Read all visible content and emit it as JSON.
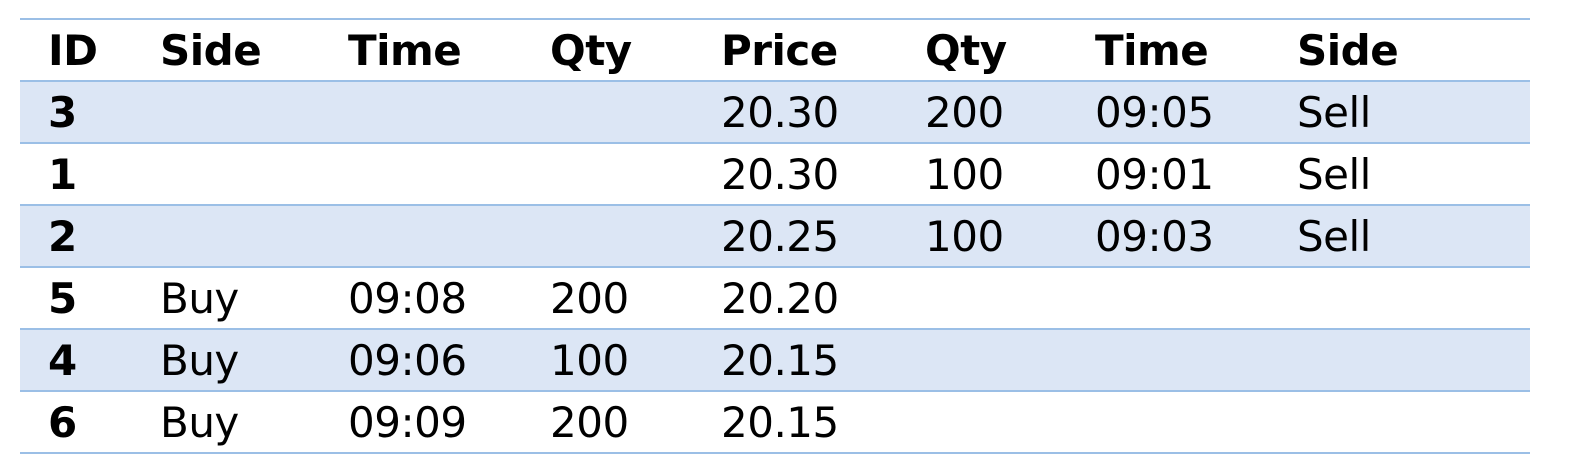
{
  "table": {
    "headers": [
      "ID",
      "Side",
      "Time",
      "Qty",
      "Price",
      "Qty",
      "Time",
      "Side"
    ],
    "rows": [
      [
        "3",
        "",
        "",
        "",
        "20.30",
        "200",
        "09:05",
        "Sell"
      ],
      [
        "1",
        "",
        "",
        "",
        "20.30",
        "100",
        "09:01",
        "Sell"
      ],
      [
        "2",
        "",
        "",
        "",
        "20.25",
        "100",
        "09:03",
        "Sell"
      ],
      [
        "5",
        "Buy",
        "09:08",
        "200",
        "20.20",
        "",
        "",
        ""
      ],
      [
        "4",
        "Buy",
        "09:06",
        "100",
        "20.15",
        "",
        "",
        ""
      ],
      [
        "6",
        "Buy",
        "09:09",
        "200",
        "20.15",
        "",
        "",
        ""
      ]
    ]
  },
  "colors": {
    "row_shade": "#dce6f5",
    "rule": "#9bbfe6"
  }
}
